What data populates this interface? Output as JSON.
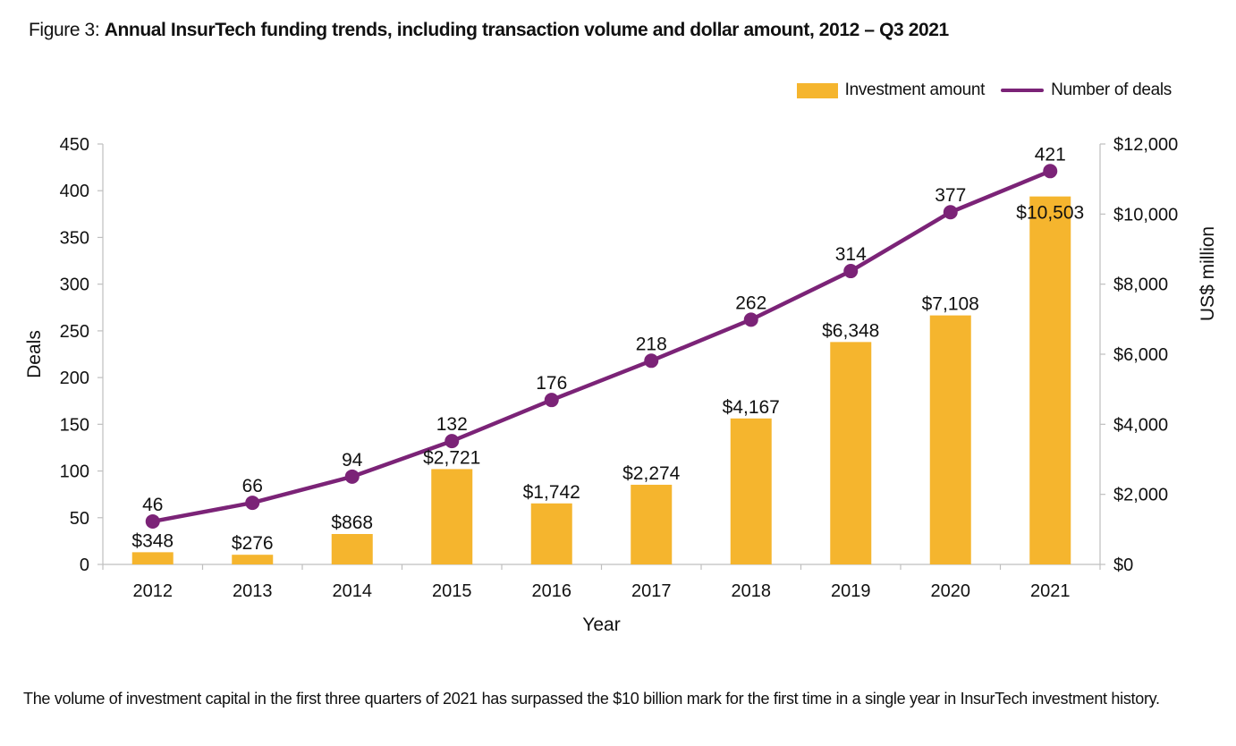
{
  "figure": {
    "label": "Figure 3:",
    "title": "Annual InsurTech funding trends, including transaction volume and dollar amount, 2012 – Q3 2021"
  },
  "legend": {
    "investment": "Investment amount",
    "deals": "Number of deals"
  },
  "colors": {
    "bar": "#F5B52E",
    "line": "#7B2377",
    "axis": "#BFBFBF",
    "text": "#111111"
  },
  "chart_data": {
    "type": "bar+line",
    "categories": [
      "2012",
      "2013",
      "2014",
      "2015",
      "2016",
      "2017",
      "2018",
      "2019",
      "2020",
      "2021"
    ],
    "series": [
      {
        "name": "Investment amount",
        "type": "bar",
        "axis": "right",
        "values": [
          348,
          276,
          868,
          2721,
          1742,
          2274,
          4167,
          6348,
          7108,
          10503
        ],
        "labels": [
          "$348",
          "$276",
          "$868",
          "$2,721",
          "$1,742",
          "$2,274",
          "$4,167",
          "$6,348",
          "$7,108",
          "$10,503"
        ]
      },
      {
        "name": "Number of deals",
        "type": "line",
        "axis": "left",
        "values": [
          46,
          66,
          94,
          132,
          176,
          218,
          262,
          314,
          377,
          421
        ],
        "labels": [
          "46",
          "66",
          "94",
          "132",
          "176",
          "218",
          "262",
          "314",
          "377",
          "421"
        ]
      }
    ],
    "xlabel": "Year",
    "ylabel_left": "Deals",
    "ylabel_right": "US$ million",
    "ylim_left": [
      0,
      450
    ],
    "ylim_right": [
      0,
      12000
    ],
    "yticks_left": [
      "0",
      "50",
      "100",
      "150",
      "200",
      "250",
      "300",
      "350",
      "400",
      "450"
    ],
    "yticks_right": [
      "$0",
      "$2,000",
      "$4,000",
      "$6,000",
      "$8,000",
      "$10,000",
      "$12,000"
    ],
    "grid": false,
    "legend_position": "top-right"
  },
  "footnote": "The volume of investment capital in the first three quarters of 2021 has surpassed the $10 billion mark for the first time in a single year in InsurTech investment history."
}
